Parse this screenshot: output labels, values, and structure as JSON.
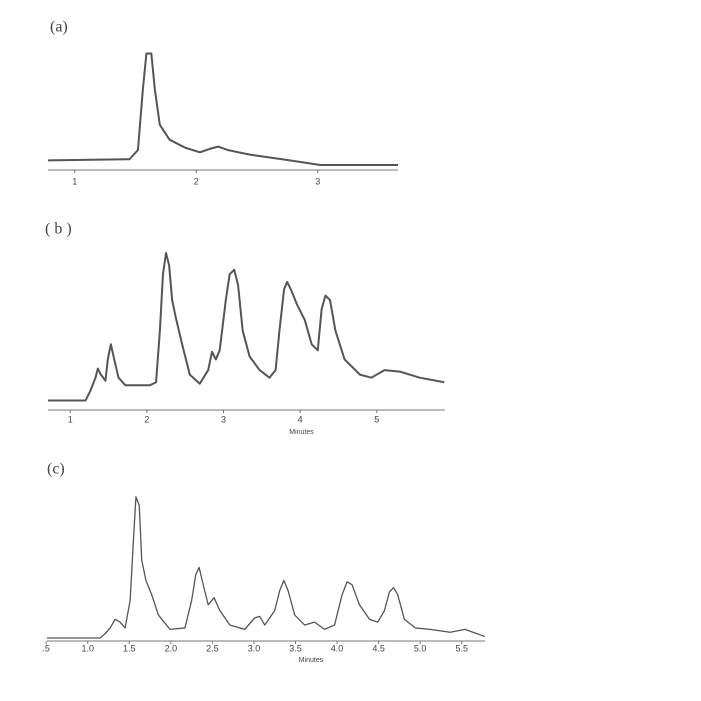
{
  "chart_data": [
    {
      "type": "line",
      "title": "(a)",
      "x": [
        0.78,
        1.45,
        1.52,
        1.56,
        1.59,
        1.63,
        1.66,
        1.7,
        1.78,
        1.91,
        2.03,
        2.11,
        2.18,
        2.26,
        2.44,
        2.77,
        3.02,
        3.66
      ],
      "values": [
        4,
        5,
        13,
        65,
        97,
        97,
        65,
        35,
        22,
        15,
        11,
        14,
        16,
        13,
        9,
        4,
        0,
        0
      ],
      "color": "#555555",
      "xlim": [
        0.78,
        3.66
      ],
      "xticks": [
        1,
        2,
        3
      ],
      "ylim": [
        0,
        100
      ]
    },
    {
      "type": "line",
      "title": "( b )",
      "xlabel": "Minutes",
      "x": [
        0.71,
        1.2,
        1.26,
        1.33,
        1.36,
        1.4,
        1.46,
        1.49,
        1.53,
        1.57,
        1.63,
        1.72,
        2.04,
        2.12,
        2.17,
        2.21,
        2.25,
        2.29,
        2.33,
        2.38,
        2.46,
        2.56,
        2.69,
        2.8,
        2.85,
        2.9,
        2.95,
        3.03,
        3.08,
        3.14,
        3.19,
        3.25,
        3.34,
        3.47,
        3.6,
        3.68,
        3.73,
        3.79,
        3.83,
        3.88,
        3.96,
        4.06,
        4.15,
        4.23,
        4.28,
        4.33,
        4.39,
        4.46,
        4.58,
        4.78,
        4.93,
        5.1,
        5.3,
        5.56,
        5.88
      ],
      "values": [
        1,
        1,
        7,
        16,
        22,
        18,
        14,
        28,
        38,
        29,
        16,
        11,
        11,
        13,
        47,
        84,
        98,
        90,
        67,
        55,
        38,
        18,
        12,
        21,
        33,
        28,
        34,
        67,
        84,
        87,
        77,
        47,
        30,
        21,
        16,
        21,
        47,
        74,
        79,
        74,
        64,
        54,
        38,
        34,
        61,
        70,
        67,
        47,
        28,
        18,
        16,
        21,
        20,
        16,
        13
      ],
      "color": "#555555",
      "xlim": [
        0.71,
        5.89
      ],
      "xticks": [
        1,
        2,
        3,
        4,
        5
      ],
      "ylim": [
        0,
        100
      ]
    },
    {
      "type": "line",
      "title": "(c)",
      "xlabel": "Minutes",
      "x": [
        0.51,
        1.15,
        1.21,
        1.27,
        1.33,
        1.39,
        1.45,
        1.51,
        1.55,
        1.58,
        1.62,
        1.65,
        1.7,
        1.77,
        1.85,
        1.99,
        2.17,
        2.25,
        2.3,
        2.34,
        2.39,
        2.45,
        2.52,
        2.59,
        2.71,
        2.89,
        3.01,
        3.07,
        3.13,
        3.25,
        3.31,
        3.36,
        3.41,
        3.49,
        3.61,
        3.73,
        3.85,
        3.97,
        4.06,
        4.12,
        4.18,
        4.27,
        4.39,
        4.49,
        4.57,
        4.63,
        4.68,
        4.73,
        4.81,
        4.94,
        5.12,
        5.36,
        5.54,
        5.78
      ],
      "values": [
        0,
        0,
        3,
        7,
        13,
        11,
        7,
        26,
        68,
        98,
        92,
        54,
        40,
        30,
        16,
        6,
        7,
        26,
        44,
        49,
        37,
        23,
        28,
        19,
        9,
        6,
        14,
        15,
        9,
        19,
        33,
        40,
        33,
        16,
        9,
        11,
        6,
        9,
        30,
        39,
        37,
        23,
        13,
        11,
        19,
        32,
        35,
        30,
        13,
        7,
        6,
        4,
        6,
        1
      ],
      "color": "#555555",
      "xlim": [
        0.51,
        5.78
      ],
      "xticks": [
        {
          "value": 0.5,
          "label": ".5"
        },
        {
          "value": 1,
          "label": "1.0"
        },
        1.5,
        {
          "value": 2,
          "label": "2.0"
        },
        2.5,
        {
          "value": 3,
          "label": "3.0"
        },
        3.5,
        {
          "value": 4,
          "label": "4.0"
        },
        4.5,
        {
          "value": 5,
          "label": "5.0"
        },
        5.5
      ],
      "ylim": [
        0,
        100
      ]
    }
  ]
}
